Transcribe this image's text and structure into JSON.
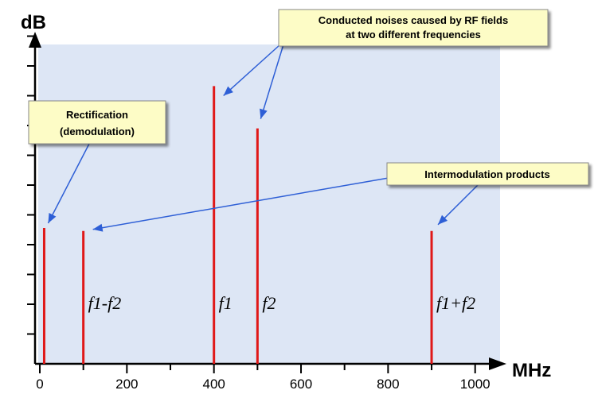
{
  "chart_data": {
    "type": "bar",
    "xlabel": "MHz",
    "ylabel": "dB",
    "xlim": [
      0,
      1050
    ],
    "x_ticks": [
      "0",
      "200",
      "400",
      "600",
      "800",
      "1000"
    ],
    "grid": false,
    "lines": [
      {
        "x": 10,
        "value": 4.5,
        "label": ""
      },
      {
        "x": 100,
        "value": 4.4,
        "label": "f1-f2"
      },
      {
        "x": 400,
        "value": 9.2,
        "label": "f1"
      },
      {
        "x": 500,
        "value": 7.8,
        "label": "f2"
      },
      {
        "x": 900,
        "value": 4.4,
        "label": "f1+f2"
      }
    ],
    "annotations": [
      {
        "id": "rf",
        "lines": [
          "Conducted noises caused by RF fields",
          "at two different frequencies"
        ]
      },
      {
        "id": "rect",
        "lines": [
          "Rectification",
          "(demodulation)"
        ]
      },
      {
        "id": "im",
        "lines": [
          "Intermodulation products"
        ]
      }
    ]
  },
  "colors": {
    "plot_bg": "#dde6f5",
    "line": "#e01818",
    "callout_bg": "#fdfcc6",
    "arrow": "#2e5fd6"
  }
}
